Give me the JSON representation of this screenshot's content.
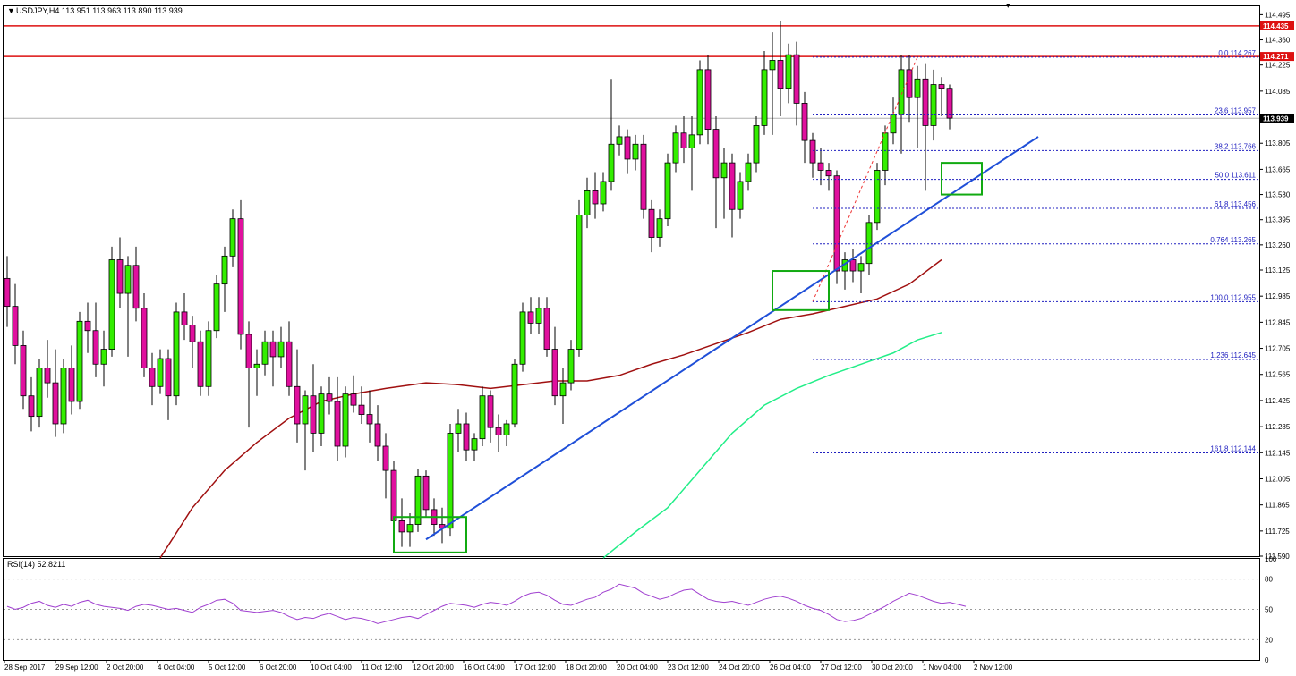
{
  "header": {
    "symbol_line": "USDJPY,H4  113.951 113.963 113.890 113.939",
    "rsi_label": "RSI(14) 52.8211"
  },
  "colors": {
    "bull": "#33ee00",
    "bear": "#e0109e",
    "resistance": "#dd1111",
    "trendline": "#1f4fd8",
    "ma_fast": "#a01010",
    "ma_slow": "#22ee88",
    "fib": "#2020c0",
    "rsi": "#a040d0",
    "box": "#11aa11"
  },
  "chart_data": [
    {
      "type": "candlestick",
      "instrument": "USDJPY",
      "timeframe": "H4",
      "ylim": [
        111.59,
        114.54
      ],
      "yticks": [
        "114.495",
        "114.360",
        "114.225",
        "114.085",
        "113.950",
        "113.805",
        "113.665",
        "113.530",
        "113.395",
        "113.260",
        "113.125",
        "112.985",
        "112.845",
        "112.705",
        "112.565",
        "112.425",
        "112.285",
        "112.145",
        "112.005",
        "111.865",
        "111.725",
        "111.590"
      ],
      "xticks": [
        "28 Sep 2017",
        "29 Sep 12:00",
        "2 Oct 20:00",
        "4 Oct 04:00",
        "5 Oct 12:00",
        "6 Oct 20:00",
        "10 Oct 04:00",
        "11 Oct 12:00",
        "12 Oct 20:00",
        "16 Oct 04:00",
        "17 Oct 12:00",
        "18 Oct 20:00",
        "20 Oct 04:00",
        "23 Oct 12:00",
        "24 Oct 20:00",
        "26 Oct 04:00",
        "27 Oct 12:00",
        "30 Oct 20:00",
        "1 Nov 04:00",
        "2 Nov 12:00"
      ],
      "price_labels": {
        "resistance_1": "114.435",
        "resistance_2": "114.271",
        "current": "113.939"
      },
      "resistance_levels": [
        114.435,
        114.271
      ],
      "current_price": 113.939,
      "fib_levels": [
        {
          "label": "0.0",
          "value": "114.267",
          "price": 114.267
        },
        {
          "label": "23.6",
          "value": "113.957",
          "price": 113.957
        },
        {
          "label": "38.2",
          "value": "113.766",
          "price": 113.766
        },
        {
          "label": "50.0",
          "value": "113.611",
          "price": 113.611
        },
        {
          "label": "61.8",
          "value": "113.456",
          "price": 113.456
        },
        {
          "label": "0.764",
          "value": "113.265",
          "price": 113.265
        },
        {
          "label": "100.0",
          "value": "112.955",
          "price": 112.955
        },
        {
          "label": "1.236",
          "value": "112.645",
          "price": 112.645
        },
        {
          "label": "161.8",
          "value": "112.144",
          "price": 112.144
        }
      ],
      "trendline": {
        "from": [
          52,
          111.68
        ],
        "to": [
          128,
          113.84
        ]
      },
      "fib_anchor": {
        "from": [
          100,
          112.955
        ],
        "to": [
          113,
          114.267
        ]
      },
      "highlight_boxes": [
        {
          "x1": 48,
          "x2": 57,
          "y1": 111.61,
          "y2": 111.8
        },
        {
          "x1": 95,
          "x2": 102,
          "y1": 112.91,
          "y2": 113.12
        },
        {
          "x1": 116,
          "x2": 121,
          "y1": 113.53,
          "y2": 113.7
        }
      ],
      "moving_averages": [
        {
          "key": "ma_fast",
          "points": [
            [
              19,
              111.58
            ],
            [
              23,
              111.85
            ],
            [
              27,
              112.05
            ],
            [
              31,
              112.2
            ],
            [
              35,
              112.33
            ],
            [
              39,
              112.42
            ],
            [
              43,
              112.46
            ],
            [
              47,
              112.49
            ],
            [
              52,
              112.52
            ],
            [
              56,
              112.51
            ],
            [
              60,
              112.49
            ],
            [
              64,
              112.51
            ],
            [
              68,
              112.53
            ],
            [
              72,
              112.53
            ],
            [
              76,
              112.56
            ],
            [
              80,
              112.62
            ],
            [
              84,
              112.67
            ],
            [
              88,
              112.73
            ],
            [
              92,
              112.79
            ],
            [
              96,
              112.86
            ],
            [
              100,
              112.89
            ],
            [
              104,
              112.93
            ],
            [
              108,
              112.97
            ],
            [
              112,
              113.05
            ],
            [
              116,
              113.18
            ]
          ]
        },
        {
          "key": "ma_slow",
          "points": [
            [
              74,
              111.58
            ],
            [
              78,
              111.72
            ],
            [
              82,
              111.85
            ],
            [
              86,
              112.05
            ],
            [
              90,
              112.25
            ],
            [
              94,
              112.4
            ],
            [
              98,
              112.49
            ],
            [
              102,
              112.56
            ],
            [
              106,
              112.62
            ],
            [
              110,
              112.68
            ],
            [
              113,
              112.75
            ],
            [
              116,
              112.79
            ]
          ]
        }
      ],
      "candles": [
        [
          113.08,
          113.2,
          112.82,
          112.93
        ],
        [
          112.93,
          113.05,
          112.62,
          112.72
        ],
        [
          112.72,
          112.8,
          112.38,
          112.45
        ],
        [
          112.45,
          112.55,
          112.26,
          112.34
        ],
        [
          112.34,
          112.65,
          112.28,
          112.6
        ],
        [
          112.6,
          112.75,
          112.44,
          112.52
        ],
        [
          112.52,
          112.7,
          112.23,
          112.3
        ],
        [
          112.3,
          112.65,
          112.25,
          112.6
        ],
        [
          112.6,
          112.72,
          112.35,
          112.42
        ],
        [
          112.42,
          112.9,
          112.38,
          112.85
        ],
        [
          112.85,
          112.95,
          112.68,
          112.8
        ],
        [
          112.8,
          112.95,
          112.55,
          112.62
        ],
        [
          112.62,
          112.8,
          112.5,
          112.7
        ],
        [
          112.7,
          113.25,
          112.66,
          113.18
        ],
        [
          113.18,
          113.3,
          112.92,
          113.0
        ],
        [
          113.0,
          113.2,
          112.66,
          113.15
        ],
        [
          113.15,
          113.25,
          112.85,
          112.92
        ],
        [
          112.92,
          113.0,
          112.55,
          112.6
        ],
        [
          112.6,
          112.68,
          112.4,
          112.5
        ],
        [
          112.5,
          112.7,
          112.46,
          112.65
        ],
        [
          112.65,
          112.7,
          112.32,
          112.45
        ],
        [
          112.45,
          112.95,
          112.4,
          112.9
        ],
        [
          112.9,
          113.0,
          112.75,
          112.83
        ],
        [
          112.83,
          112.88,
          112.6,
          112.74
        ],
        [
          112.74,
          112.8,
          112.45,
          112.5
        ],
        [
          112.5,
          112.85,
          112.45,
          112.8
        ],
        [
          112.8,
          113.1,
          112.76,
          113.05
        ],
        [
          113.05,
          113.25,
          112.9,
          113.2
        ],
        [
          113.2,
          113.45,
          113.14,
          113.4
        ],
        [
          113.4,
          113.5,
          112.7,
          112.78
        ],
        [
          112.78,
          112.85,
          112.28,
          112.6
        ],
        [
          112.6,
          112.7,
          112.45,
          112.62
        ],
        [
          112.62,
          112.8,
          112.56,
          112.74
        ],
        [
          112.74,
          112.8,
          112.5,
          112.66
        ],
        [
          112.66,
          112.82,
          112.6,
          112.74
        ],
        [
          112.74,
          112.85,
          112.45,
          112.5
        ],
        [
          112.5,
          112.7,
          112.2,
          112.3
        ],
        [
          112.3,
          112.48,
          112.05,
          112.45
        ],
        [
          112.45,
          112.62,
          112.15,
          112.25
        ],
        [
          112.25,
          112.5,
          112.18,
          112.46
        ],
        [
          112.46,
          112.55,
          112.35,
          112.42
        ],
        [
          112.42,
          112.55,
          112.1,
          112.18
        ],
        [
          112.18,
          112.5,
          112.12,
          112.46
        ],
        [
          112.46,
          112.56,
          112.36,
          112.4
        ],
        [
          112.4,
          112.5,
          112.3,
          112.35
        ],
        [
          112.35,
          112.48,
          112.2,
          112.3
        ],
        [
          112.3,
          112.4,
          112.1,
          112.18
        ],
        [
          112.18,
          112.25,
          111.9,
          112.05
        ],
        [
          112.05,
          112.1,
          111.7,
          111.78
        ],
        [
          111.78,
          111.9,
          111.64,
          111.72
        ],
        [
          111.72,
          111.82,
          111.64,
          111.76
        ],
        [
          111.76,
          112.06,
          111.72,
          112.02
        ],
        [
          112.02,
          112.05,
          111.8,
          111.84
        ],
        [
          111.84,
          111.9,
          111.7,
          111.76
        ],
        [
          111.76,
          111.85,
          111.66,
          111.74
        ],
        [
          111.74,
          112.3,
          111.7,
          112.25
        ],
        [
          112.25,
          112.38,
          112.15,
          112.3
        ],
        [
          112.3,
          112.36,
          112.1,
          112.16
        ],
        [
          112.16,
          112.25,
          112.1,
          112.22
        ],
        [
          112.22,
          112.5,
          112.18,
          112.45
        ],
        [
          112.45,
          112.48,
          112.2,
          112.28
        ],
        [
          112.28,
          112.35,
          112.15,
          112.24
        ],
        [
          112.24,
          112.32,
          112.18,
          112.3
        ],
        [
          112.3,
          112.65,
          112.28,
          112.62
        ],
        [
          112.62,
          112.95,
          112.58,
          112.9
        ],
        [
          112.9,
          112.98,
          112.78,
          112.84
        ],
        [
          112.84,
          112.98,
          112.78,
          112.92
        ],
        [
          112.92,
          112.98,
          112.66,
          112.7
        ],
        [
          112.7,
          112.82,
          112.4,
          112.45
        ],
        [
          112.45,
          112.6,
          112.3,
          112.52
        ],
        [
          112.52,
          112.75,
          112.48,
          112.7
        ],
        [
          112.7,
          113.5,
          112.66,
          113.42
        ],
        [
          113.42,
          113.62,
          113.35,
          113.55
        ],
        [
          113.55,
          113.65,
          113.4,
          113.48
        ],
        [
          113.48,
          113.65,
          113.44,
          113.6
        ],
        [
          113.6,
          114.15,
          113.55,
          113.8
        ],
        [
          113.8,
          113.9,
          113.74,
          113.84
        ],
        [
          113.84,
          113.88,
          113.64,
          113.72
        ],
        [
          113.72,
          113.85,
          113.66,
          113.8
        ],
        [
          113.8,
          113.85,
          113.4,
          113.45
        ],
        [
          113.45,
          113.5,
          113.22,
          113.3
        ],
        [
          113.3,
          113.45,
          113.25,
          113.4
        ],
        [
          113.4,
          113.75,
          113.36,
          113.7
        ],
        [
          113.7,
          113.9,
          113.65,
          113.86
        ],
        [
          113.86,
          113.95,
          113.7,
          113.78
        ],
        [
          113.78,
          113.95,
          113.55,
          113.85
        ],
        [
          113.85,
          114.25,
          113.8,
          114.2
        ],
        [
          114.2,
          114.28,
          113.8,
          113.88
        ],
        [
          113.88,
          113.95,
          113.35,
          113.62
        ],
        [
          113.62,
          113.78,
          113.4,
          113.7
        ],
        [
          113.7,
          113.75,
          113.3,
          113.45
        ],
        [
          113.45,
          113.65,
          113.4,
          113.6
        ],
        [
          113.6,
          113.75,
          113.55,
          113.7
        ],
        [
          113.7,
          113.95,
          113.65,
          113.9
        ],
        [
          113.9,
          114.3,
          113.85,
          114.2
        ],
        [
          114.2,
          114.4,
          113.85,
          114.25
        ],
        [
          114.25,
          114.46,
          113.95,
          114.1
        ],
        [
          114.1,
          114.34,
          114.02,
          114.28
        ],
        [
          114.28,
          114.35,
          113.9,
          114.02
        ],
        [
          114.02,
          114.08,
          113.7,
          113.82
        ],
        [
          113.82,
          113.86,
          113.62,
          113.7
        ],
        [
          113.7,
          113.78,
          113.58,
          113.66
        ],
        [
          113.66,
          113.7,
          113.55,
          113.63
        ],
        [
          113.63,
          113.66,
          113.05,
          113.12
        ],
        [
          113.12,
          113.22,
          113.02,
          113.18
        ],
        [
          113.18,
          113.24,
          113.06,
          113.12
        ],
        [
          113.12,
          113.2,
          113.0,
          113.16
        ],
        [
          113.16,
          113.42,
          113.1,
          113.38
        ],
        [
          113.38,
          113.7,
          113.34,
          113.66
        ],
        [
          113.66,
          113.9,
          113.58,
          113.86
        ],
        [
          113.86,
          114.05,
          113.8,
          113.96
        ],
        [
          113.96,
          114.28,
          113.75,
          114.2
        ],
        [
          114.2,
          114.28,
          113.92,
          114.05
        ],
        [
          114.05,
          114.22,
          113.78,
          114.15
        ],
        [
          114.15,
          114.23,
          113.55,
          113.9
        ],
        [
          113.9,
          114.2,
          113.82,
          114.12
        ],
        [
          114.12,
          114.16,
          113.95,
          114.1
        ],
        [
          114.1,
          114.12,
          113.88,
          113.94
        ]
      ]
    },
    {
      "type": "line",
      "name": "RSI(14) 52.8211",
      "ylim": [
        0,
        100
      ],
      "yticks": [
        "100",
        "80",
        "50",
        "20",
        "0"
      ],
      "levels": [
        80,
        50,
        20
      ],
      "values": [
        53,
        50,
        52,
        56,
        58,
        54,
        52,
        55,
        53,
        57,
        59,
        55,
        53,
        52,
        51,
        49,
        53,
        55,
        54,
        52,
        50,
        51,
        49,
        47,
        52,
        55,
        59,
        60,
        56,
        49,
        48,
        47,
        48,
        49,
        47,
        43,
        40,
        42,
        41,
        44,
        46,
        43,
        40,
        42,
        41,
        39,
        36,
        38,
        40,
        42,
        43,
        41,
        45,
        49,
        53,
        56,
        55,
        54,
        52,
        55,
        57,
        56,
        54,
        58,
        63,
        66,
        67,
        64,
        59,
        55,
        54,
        57,
        60,
        62,
        67,
        70,
        75,
        73,
        71,
        66,
        63,
        60,
        62,
        66,
        69,
        70,
        65,
        60,
        58,
        57,
        58,
        56,
        54,
        57,
        60,
        62,
        63,
        61,
        58,
        54,
        51,
        49,
        45,
        40,
        38,
        39,
        41,
        45,
        49,
        53,
        58,
        62,
        66,
        64,
        61,
        58,
        56,
        57,
        55,
        53
      ]
    }
  ]
}
